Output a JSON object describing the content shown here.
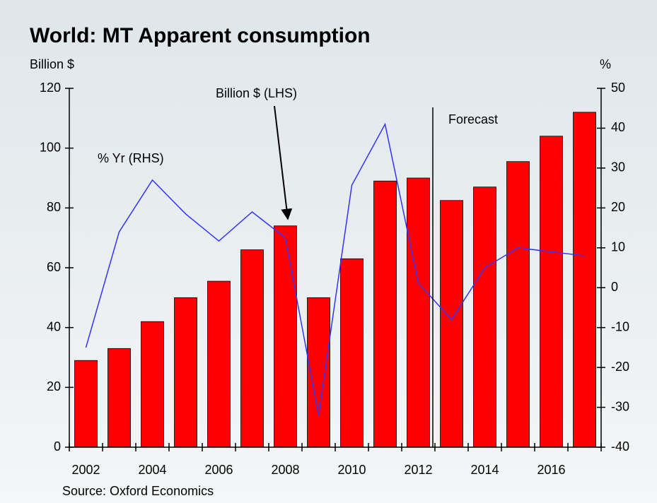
{
  "chart_data": {
    "type": "bar_line",
    "title": "World: MT Apparent consumption",
    "y_label": "Billion $",
    "y2_label": "%",
    "source": "Source: Oxford Economics",
    "annotations": [
      "Billion $ (LHS)",
      "% Yr (RHS)",
      "Forecast"
    ],
    "categories": [
      "2002",
      null,
      "2004",
      null,
      "2006",
      null,
      "2008",
      null,
      "2010",
      null,
      "2012",
      null,
      "2014",
      null,
      "2016",
      null
    ],
    "series": [
      {
        "name": "Billion $ (LHS)",
        "type": "bar",
        "color": "#ff0000",
        "values": [
          29,
          33,
          42,
          50,
          55.5,
          66,
          74,
          50,
          63,
          89,
          90,
          82.5,
          87,
          95.5,
          104,
          112
        ]
      },
      {
        "name": "% Yr (RHS)",
        "type": "line",
        "axis": "y2",
        "color": "#3333ff",
        "values": [
          -15,
          14,
          27,
          18.5,
          11.7,
          19,
          12.5,
          -32,
          25.7,
          41,
          1.2,
          -8,
          5,
          10,
          9,
          8
        ]
      }
    ],
    "ylim": [
      0,
      120
    ],
    "yticks": [
      0,
      20,
      40,
      60,
      80,
      100,
      120
    ],
    "y2lim": [
      -40,
      50
    ],
    "y2ticks": [
      -40,
      -30,
      -20,
      -10,
      0,
      10,
      20,
      30,
      40,
      50
    ]
  }
}
